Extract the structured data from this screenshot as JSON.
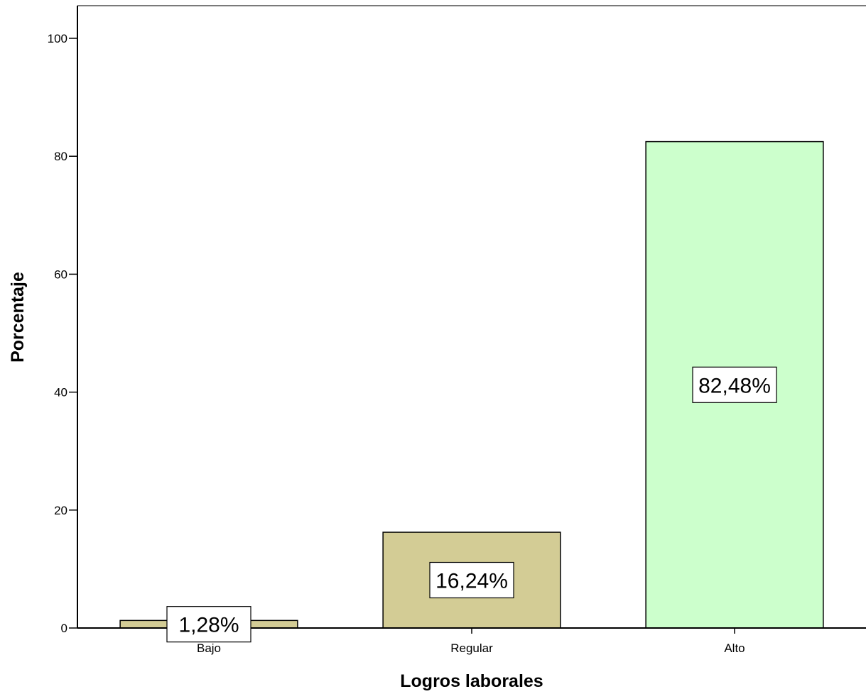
{
  "chart_data": {
    "type": "bar",
    "categories": [
      "Bajo",
      "Regular",
      "Alto"
    ],
    "values": [
      1.28,
      16.24,
      82.48
    ],
    "data_labels": [
      "1,28%",
      "16,24%",
      "82,48%"
    ],
    "bar_colors": [
      "#d3cc95",
      "#d3cc95",
      "#ccffcc"
    ],
    "title": "",
    "xlabel": "Logros laborales",
    "ylabel": "Porcentaje",
    "ylim": [
      0,
      105
    ],
    "yticks": [
      0,
      20,
      40,
      60,
      80,
      100
    ],
    "ytick_labels": [
      "0",
      "20",
      "40",
      "60",
      "80",
      "100"
    ],
    "grid": false,
    "legend": "none"
  }
}
